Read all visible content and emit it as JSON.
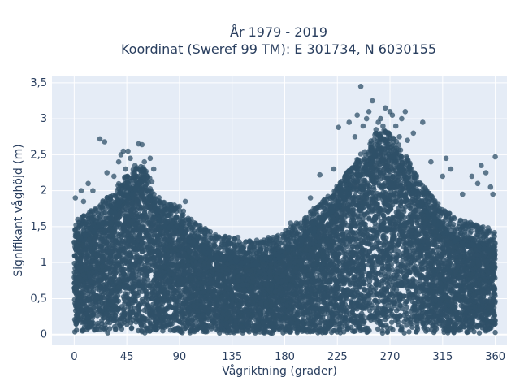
{
  "chart_data": {
    "type": "scatter",
    "title": [
      "År 1979 - 2019",
      "Koordinat (Sweref 99 TM): E 301734, N 6030155"
    ],
    "xlabel": "Vågriktning (grader)",
    "ylabel": "Signifikant våghöjd (m)",
    "xlim": [
      -19,
      370
    ],
    "ylim": [
      -0.15,
      3.6
    ],
    "x_ticks": [
      0,
      45,
      90,
      135,
      180,
      225,
      270,
      315,
      360
    ],
    "x_tick_labels": [
      "0",
      "45",
      "90",
      "135",
      "180",
      "225",
      "270",
      "315",
      "360"
    ],
    "y_ticks": [
      0,
      0.5,
      1,
      1.5,
      2,
      2.5,
      3,
      3.5
    ],
    "y_tick_labels": [
      "0",
      "0,5",
      "1",
      "1,5",
      "2",
      "2,5",
      "3",
      "3,5"
    ],
    "grid": true,
    "background": "#e5ecf6",
    "marker_color": "#2f5068",
    "dense_envelope": {
      "x": [
        0,
        10,
        20,
        30,
        40,
        50,
        57,
        65,
        75,
        90,
        100,
        110,
        120,
        135,
        150,
        165,
        180,
        195,
        210,
        225,
        240,
        255,
        262,
        270,
        280,
        290,
        300,
        315,
        330,
        345,
        360
      ],
      "y": [
        1.25,
        1.45,
        1.55,
        1.7,
        1.9,
        2.05,
        2.15,
        1.95,
        1.6,
        1.55,
        1.35,
        1.25,
        1.15,
        1.1,
        1.05,
        1.1,
        1.2,
        1.35,
        1.6,
        1.85,
        2.15,
        2.5,
        2.65,
        2.55,
        2.35,
        2.05,
        1.8,
        1.5,
        1.35,
        1.3,
        1.2
      ]
    },
    "outliers": {
      "x": [
        1,
        3,
        6,
        8,
        12,
        16,
        22,
        26,
        28,
        34,
        38,
        40,
        42,
        44,
        46,
        48,
        52,
        55,
        56,
        58,
        60,
        63,
        65,
        68,
        90,
        95,
        100,
        140,
        150,
        170,
        185,
        190,
        202,
        210,
        222,
        226,
        229,
        235,
        240,
        242,
        245,
        247,
        250,
        252,
        255,
        258,
        260,
        262,
        264,
        266,
        268,
        270,
        272,
        275,
        278,
        280,
        283,
        285,
        290,
        298,
        305,
        315,
        318,
        322,
        332,
        340,
        345,
        348,
        352,
        356,
        358,
        360
      ],
      "y": [
        1.9,
        1.6,
        2.0,
        1.85,
        2.1,
        2.0,
        2.72,
        2.68,
        2.25,
        2.2,
        2.4,
        2.5,
        2.55,
        2.3,
        2.55,
        2.45,
        2.35,
        2.65,
        2.1,
        2.64,
        2.4,
        2.2,
        2.45,
        2.3,
        1.78,
        1.85,
        1.6,
        1.35,
        1.3,
        1.35,
        1.55,
        1.55,
        1.9,
        2.22,
        2.3,
        2.88,
        2.0,
        2.95,
        2.75,
        3.05,
        3.45,
        2.9,
        3.0,
        3.1,
        3.25,
        2.85,
        2.95,
        3.0,
        2.9,
        3.15,
        2.8,
        3.1,
        3.05,
        2.9,
        2.75,
        3.0,
        3.1,
        2.7,
        2.8,
        2.95,
        2.4,
        2.2,
        2.45,
        2.3,
        1.95,
        2.2,
        2.1,
        2.35,
        2.25,
        2.05,
        1.95,
        2.47
      ]
    }
  }
}
